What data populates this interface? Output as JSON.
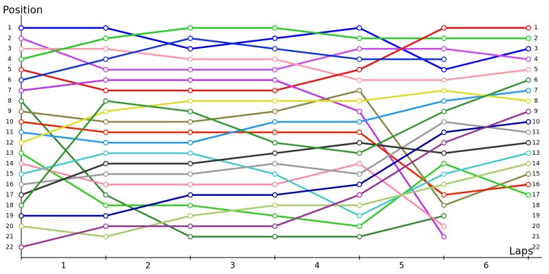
{
  "chart_data": {
    "type": "line",
    "y_label": "Position",
    "x_label": "Laps",
    "x": [
      0,
      1,
      2,
      3,
      4,
      5,
      6
    ],
    "xlim": [
      0,
      6.15
    ],
    "xticks": [
      {
        "value": 0.5,
        "label": "1"
      },
      {
        "value": 1.5,
        "label": "2"
      },
      {
        "value": 2.5,
        "label": "3"
      },
      {
        "value": 3.5,
        "label": "4"
      },
      {
        "value": 4.5,
        "label": "5"
      },
      {
        "value": 5.5,
        "label": "6"
      }
    ],
    "ylim": [
      23,
      0
    ],
    "yticks": [
      1,
      2,
      3,
      4,
      5,
      6,
      7,
      8,
      9,
      10,
      11,
      12,
      13,
      14,
      15,
      16,
      17,
      18,
      19,
      20,
      21,
      22
    ],
    "series": [
      {
        "color": "#0000ff",
        "values": [
          1,
          1,
          3,
          2,
          1,
          5,
          3
        ]
      },
      {
        "color": "#cc44ee",
        "values": [
          2,
          5,
          5,
          5,
          3,
          3,
          4
        ]
      },
      {
        "color": "#ff99aa",
        "values": [
          3,
          3,
          4,
          4,
          6,
          6,
          5
        ]
      },
      {
        "color": "#22cc22",
        "values": [
          4,
          2,
          1,
          1,
          2,
          2,
          2
        ]
      },
      {
        "color": "#ee1111",
        "values": [
          5,
          7,
          7,
          7,
          5,
          1,
          1
        ]
      },
      {
        "color": "#1133dd",
        "values": [
          6,
          4,
          2,
          3,
          4,
          4,
          null
        ]
      },
      {
        "color": "#bb33ee",
        "values": [
          7,
          6,
          6,
          6,
          9,
          21,
          null
        ]
      },
      {
        "color": "#338833",
        "values": [
          8,
          17,
          21,
          21,
          21,
          19,
          null
        ]
      },
      {
        "color": "#888844",
        "values": [
          9,
          10,
          10,
          9,
          7,
          18,
          15
        ]
      },
      {
        "color": "#ee2200",
        "values": [
          10,
          11,
          11,
          11,
          11,
          17,
          16
        ]
      },
      {
        "color": "#2299ee",
        "values": [
          11,
          12,
          12,
          10,
          10,
          8,
          7
        ]
      },
      {
        "color": "#dddd22",
        "values": [
          12,
          9,
          8,
          8,
          8,
          7,
          8
        ]
      },
      {
        "color": "#33cc22",
        "values": [
          13,
          18,
          18,
          19,
          20,
          14,
          17
        ]
      },
      {
        "color": "#ff88aa",
        "values": [
          14,
          16,
          16,
          16,
          14,
          20,
          null
        ]
      },
      {
        "color": "#44cccc",
        "values": [
          15,
          13,
          13,
          15,
          19,
          15,
          13
        ]
      },
      {
        "color": "#999999",
        "values": [
          16,
          15,
          15,
          14,
          15,
          10,
          11
        ]
      },
      {
        "color": "#333333",
        "values": [
          17,
          14,
          14,
          13,
          12,
          13,
          12
        ]
      },
      {
        "color": "#339933",
        "values": [
          18,
          8,
          9,
          12,
          13,
          9,
          6
        ]
      },
      {
        "color": "#0000aa",
        "values": [
          19,
          19,
          17,
          17,
          16,
          11,
          10
        ]
      },
      {
        "color": "#aacc66",
        "values": [
          20,
          21,
          19,
          18,
          18,
          16,
          14
        ]
      },
      {
        "color": "#993399",
        "values": [
          22,
          20,
          20,
          20,
          17,
          12,
          9
        ]
      }
    ]
  }
}
